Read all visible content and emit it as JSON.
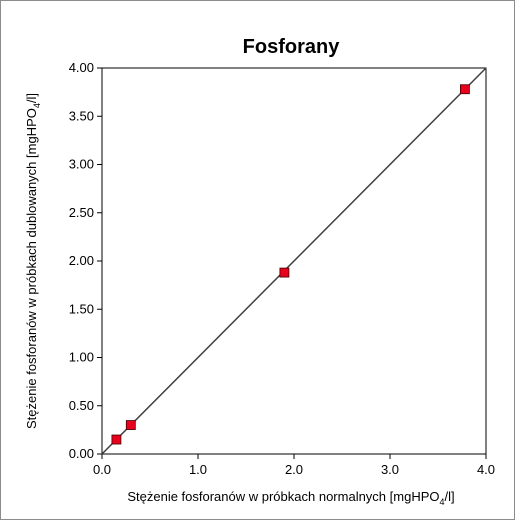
{
  "chart_data": {
    "type": "scatter",
    "title": "Fosforany",
    "xlabel": {
      "pre": "Stężenie fosforanów w próbkach normalnych [mgHPO",
      "sub": "4",
      "post": "/l]"
    },
    "ylabel": {
      "pre": "Stężenie fosforanów w próbkach dublowanych [mgHPO",
      "sub": "4",
      "post": "/l]"
    },
    "xlim": [
      0,
      4.0
    ],
    "ylim": [
      0,
      4.0
    ],
    "x_ticks": [
      "0.0",
      "1.0",
      "2.0",
      "3.0",
      "4.0"
    ],
    "y_ticks": [
      "0.00",
      "0.50",
      "1.00",
      "1.50",
      "2.00",
      "2.50",
      "3.00",
      "3.50",
      "4.00"
    ],
    "grid": false,
    "legend": "none",
    "reference_line": {
      "from": [
        0,
        0
      ],
      "to": [
        4.0,
        4.0
      ],
      "color": "#404040"
    },
    "series": [
      {
        "marker": "square",
        "color": "#e8001c",
        "x": [
          0.15,
          0.3,
          1.9,
          3.78
        ],
        "y": [
          0.15,
          0.3,
          1.88,
          3.78
        ]
      }
    ]
  }
}
